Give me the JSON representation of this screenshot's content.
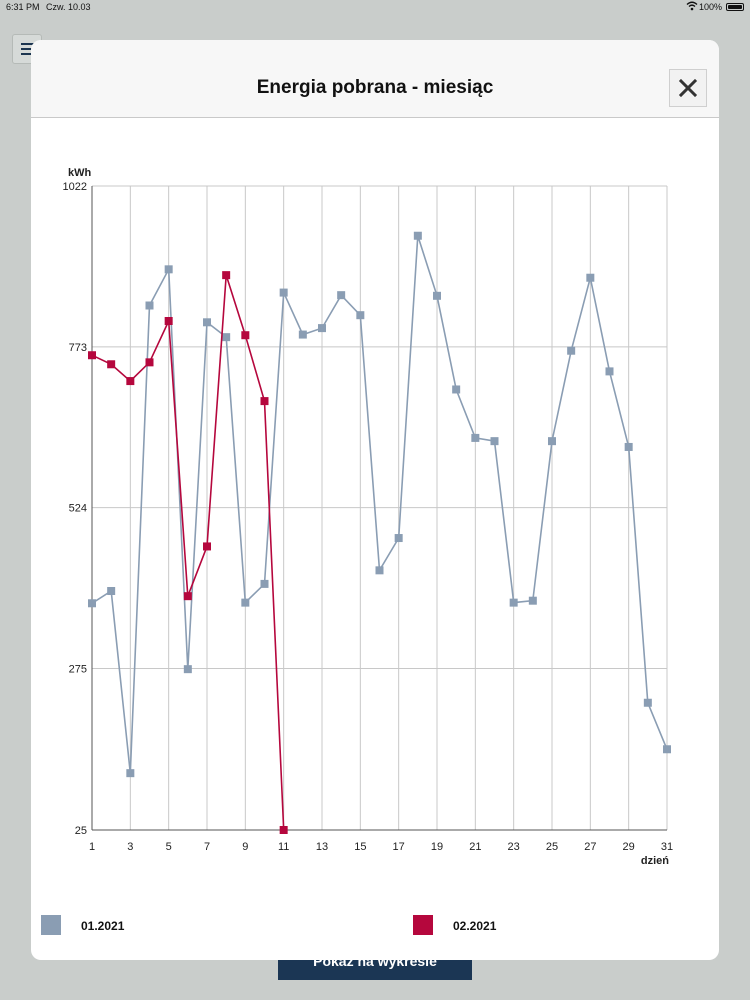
{
  "status_bar": {
    "time": "6:31 PM",
    "date": "Czw. 10.03",
    "battery": "100%",
    "icons": [
      "wifi-icon",
      "battery-icon"
    ]
  },
  "background": {
    "menu_icon": "hamburger-menu-icon",
    "button_label": "Pokaż na wykresie"
  },
  "modal": {
    "title": "Energia pobrana - miesiąc",
    "close_icon": "close-icon"
  },
  "colors": {
    "series_jan": "#8a9db3",
    "series_feb": "#b5073d",
    "grid": "#c8c8c8",
    "axis": "#555555"
  },
  "chart_data": {
    "type": "line",
    "ylabel": "kWh",
    "xlabel": "dzień",
    "y_ticks": [
      25,
      275,
      524,
      773,
      1022
    ],
    "ylim": [
      25,
      1022
    ],
    "x_tick_labels": [
      "1",
      "3",
      "5",
      "7",
      "9",
      "11",
      "13",
      "15",
      "17",
      "19",
      "21",
      "23",
      "25",
      "27",
      "29",
      "31"
    ],
    "xlim": [
      1,
      31
    ],
    "grid": true,
    "legend_position": "bottom",
    "series": [
      {
        "name": "01.2021",
        "color": "#8a9db3",
        "x": [
          1,
          2,
          3,
          4,
          5,
          6,
          7,
          8,
          9,
          10,
          11,
          12,
          13,
          14,
          15,
          16,
          17,
          18,
          19,
          20,
          21,
          22,
          23,
          24,
          25,
          26,
          27,
          28,
          29,
          30,
          31
        ],
        "values": [
          376,
          395,
          113,
          837,
          893,
          274,
          811,
          788,
          377,
          406,
          857,
          792,
          802,
          853,
          822,
          427,
          477,
          945,
          852,
          707,
          632,
          627,
          377,
          380,
          627,
          767,
          880,
          735,
          618,
          222,
          150
        ]
      },
      {
        "name": "02.2021",
        "color": "#b5073d",
        "x": [
          1,
          2,
          3,
          4,
          5,
          6,
          7,
          8,
          9,
          10,
          11
        ],
        "values": [
          760,
          746,
          720,
          749,
          813,
          387,
          464,
          884,
          791,
          689,
          25
        ]
      }
    ]
  }
}
